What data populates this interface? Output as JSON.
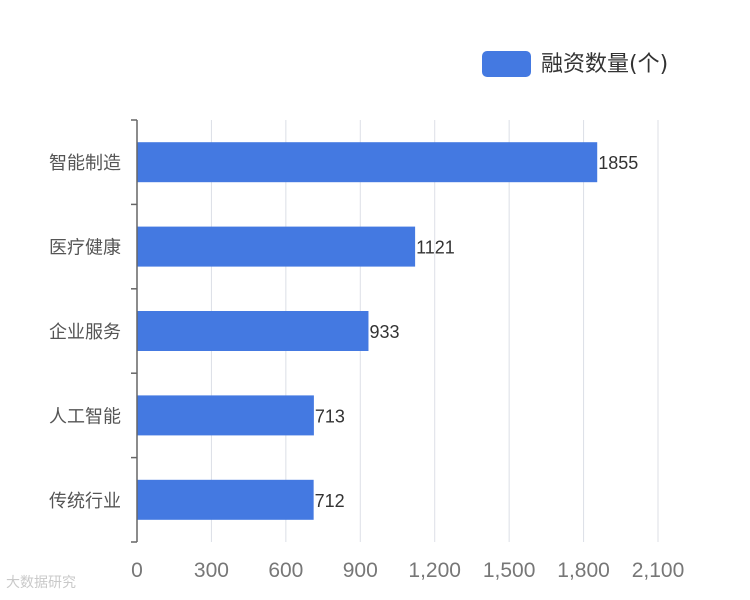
{
  "chart_data": {
    "type": "bar",
    "orientation": "horizontal",
    "categories": [
      "智能制造",
      "医疗健康",
      "企业服务",
      "人工智能",
      "传统行业"
    ],
    "series": [
      {
        "name": "融资数量(个)",
        "values": [
          1855,
          1121,
          933,
          713,
          712
        ]
      }
    ],
    "x_ticks": [
      "0",
      "300",
      "600",
      "900",
      "1,200",
      "1,500",
      "1,800",
      "2,100"
    ],
    "xlim": [
      0,
      2100
    ],
    "grid": true,
    "legend_position": "top-right",
    "colors": {
      "bar": "#4479e1",
      "grid": "#dcdfe6",
      "axis": "#666666"
    }
  },
  "watermark": "大数据研究"
}
